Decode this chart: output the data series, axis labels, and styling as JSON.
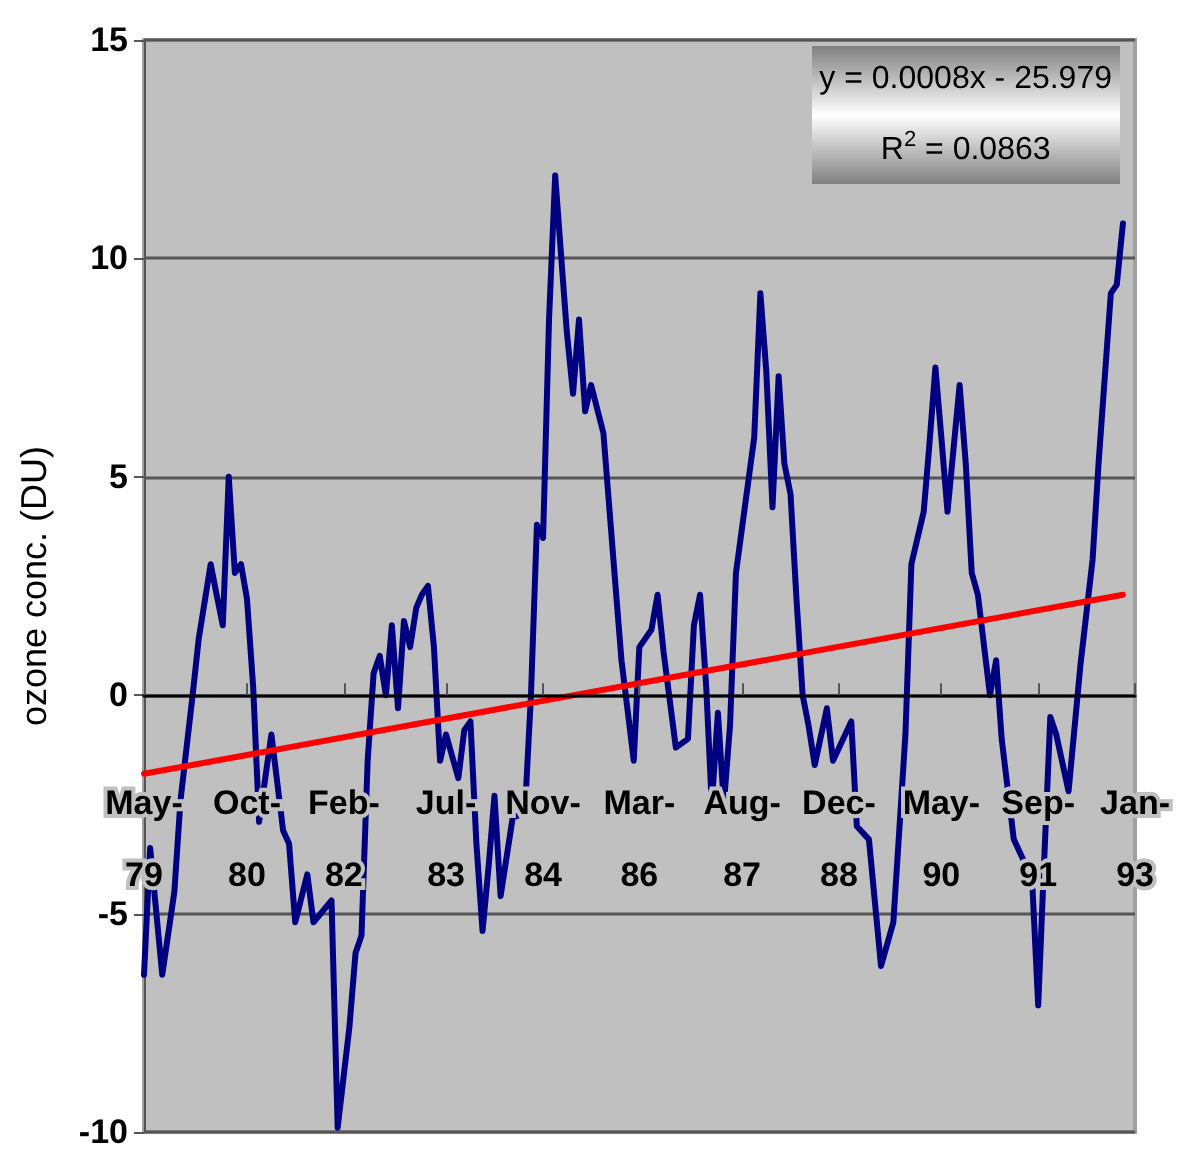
{
  "chart_data": {
    "type": "line",
    "ylabel": "ozone conc. (DU)",
    "annotations": [
      "y = 0.0008x - 25.979",
      "R$^{2}$ = 0.0863"
    ],
    "xlim": [
      "1979-05",
      "1993-01"
    ],
    "xticks": [
      {
        "value": "1979-05",
        "label": "May-79"
      },
      {
        "value": "1980-10",
        "label": "Oct-80"
      },
      {
        "value": "1982-02",
        "label": "Feb-82"
      },
      {
        "value": "1983-07",
        "label": "Jul-83"
      },
      {
        "value": "1984-11",
        "label": "Nov-84"
      },
      {
        "value": "1986-03",
        "label": "Mar-86"
      },
      {
        "value": "1987-08",
        "label": "Aug-87"
      },
      {
        "value": "1988-12",
        "label": "Dec-88"
      },
      {
        "value": "1990-05",
        "label": "May-90"
      },
      {
        "value": "1991-09",
        "label": "Sep-91"
      },
      {
        "value": "1993-01",
        "label": "Jan-93"
      }
    ],
    "ylim": [
      -10,
      15
    ],
    "yticks": [
      -10,
      -5,
      0,
      5,
      10,
      15
    ],
    "grid": "y",
    "marker": "none",
    "line_style": "solid",
    "series": [
      {
        "color": "#000080",
        "x": [
          "1979-05",
          "1979-06",
          "1979-08",
          "1979-10",
          "1979-11",
          "1980-01",
          "1980-02",
          "1980-04",
          "1980-05",
          "1980-06",
          "1980-07",
          "1980-08",
          "1980-09",
          "1980-10",
          "1980-11",
          "1980-12",
          "1981-02",
          "1981-04",
          "1981-05",
          "1981-06",
          "1981-08",
          "1981-09",
          "1981-12",
          "1982-01",
          "1982-03",
          "1982-04",
          "1982-05",
          "1982-06",
          "1982-07",
          "1982-08",
          "1982-09",
          "1982-10",
          "1982-11",
          "1982-12",
          "1983-01",
          "1983-02",
          "1983-03",
          "1983-04",
          "1983-05",
          "1983-06",
          "1983-07",
          "1983-09",
          "1983-10",
          "1983-11",
          "1983-12",
          "1984-01",
          "1984-02",
          "1984-03",
          "1984-04",
          "1984-06",
          "1984-08",
          "1984-09",
          "1984-10",
          "1984-11",
          "1984-12",
          "1985-01",
          "1985-02",
          "1985-03",
          "1985-04",
          "1985-05",
          "1985-06",
          "1985-07",
          "1985-09",
          "1985-11",
          "1985-12",
          "1986-02",
          "1986-03",
          "1986-05",
          "1986-06",
          "1986-07",
          "1986-09",
          "1986-11",
          "1986-12",
          "1987-01",
          "1987-02",
          "1987-03",
          "1987-04",
          "1987-05",
          "1987-06",
          "1987-07",
          "1987-10",
          "1987-11",
          "1987-12",
          "1988-01",
          "1988-02",
          "1988-03",
          "1988-04",
          "1988-05",
          "1988-06",
          "1988-07",
          "1988-08",
          "1988-10",
          "1988-11",
          "1989-02",
          "1989-03",
          "1989-05",
          "1989-07",
          "1989-09",
          "1989-11",
          "1989-12",
          "1990-02",
          "1990-03",
          "1990-04",
          "1990-05",
          "1990-06",
          "1990-08",
          "1990-09",
          "1990-10",
          "1990-11",
          "1991-01",
          "1991-02",
          "1991-03",
          "1991-05",
          "1991-08",
          "1991-09",
          "1991-10",
          "1991-11",
          "1991-12",
          "1992-02",
          "1992-04",
          "1992-06",
          "1992-07",
          "1992-09",
          "1992-10",
          "1992-11"
        ],
        "values": [
          -6.4,
          -3.5,
          -6.4,
          -4.5,
          -2.4,
          0.0,
          1.3,
          3.0,
          2.3,
          1.6,
          5.0,
          2.8,
          3.0,
          2.2,
          0.2,
          -2.9,
          -0.9,
          -3.1,
          -3.4,
          -5.2,
          -4.1,
          -5.2,
          -4.7,
          -9.9,
          -7.6,
          -5.9,
          -5.5,
          -1.5,
          0.5,
          0.9,
          0.0,
          1.6,
          -0.3,
          1.7,
          1.1,
          2.0,
          2.3,
          2.5,
          1.1,
          -1.5,
          -0.9,
          -1.9,
          -0.8,
          -0.6,
          -3.4,
          -5.4,
          -3.9,
          -2.3,
          -4.6,
          -2.8,
          -2.7,
          0.0,
          3.9,
          3.6,
          8.6,
          11.9,
          10.0,
          8.3,
          6.9,
          8.6,
          6.5,
          7.1,
          6.0,
          2.5,
          0.8,
          -1.5,
          1.1,
          1.5,
          2.3,
          1.0,
          -1.2,
          -1.0,
          1.6,
          2.3,
          0.2,
          -2.5,
          -0.4,
          -2.5,
          -0.7,
          2.8,
          5.9,
          9.2,
          7.4,
          4.3,
          7.3,
          5.3,
          4.6,
          2.2,
          0.0,
          -0.7,
          -1.6,
          -0.3,
          -1.5,
          -0.6,
          -3.0,
          -3.3,
          -6.2,
          -5.2,
          -0.9,
          3.0,
          4.2,
          5.7,
          7.5,
          5.9,
          4.2,
          7.1,
          5.3,
          2.8,
          2.3,
          0.0,
          0.8,
          -1.0,
          -3.3,
          -4.2,
          -7.1,
          -3.8,
          -0.5,
          -0.9,
          -2.2,
          0.7,
          3.1,
          5.3,
          9.2,
          9.4,
          10.8
        ]
      },
      {
        "color": "#ff0000",
        "x": [
          "1979-05",
          "1992-11"
        ],
        "values": [
          -1.8,
          2.3
        ]
      }
    ]
  }
}
